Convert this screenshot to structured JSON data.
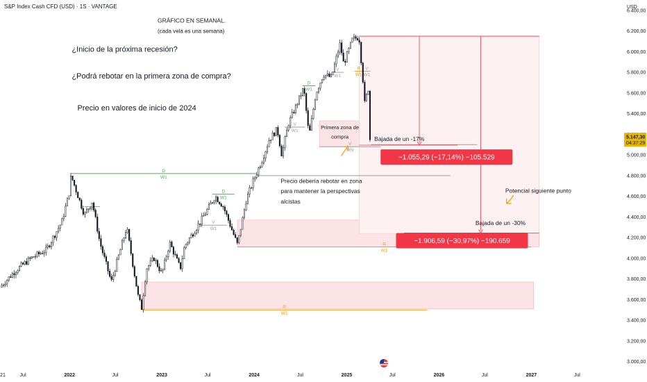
{
  "header": {
    "symbol_title": "S&P Index Cash CFD (USD) · 1S · VANTAGE",
    "currency": "USD"
  },
  "chart_data": {
    "type": "candlestick",
    "title": "S&P Index Cash CFD (USD) · 1S · VANTAGE",
    "y_axis": {
      "ticks": [
        "6.400,00",
        "6.200,00",
        "6.000,00",
        "5.800,00",
        "5.600,00",
        "5.400,00",
        "5.200,00",
        "5.000,00",
        "4.800,00",
        "4.600,00",
        "4.400,00",
        "4.200,00",
        "4.000,00",
        "3.800,00",
        "3.600,00",
        "3.400,00",
        "3.200,00",
        "3.000,00"
      ],
      "ylim": [
        2950,
        6500
      ]
    },
    "x_axis": {
      "ticks": [
        "21",
        "Jul",
        "2022",
        "Jul",
        "2023",
        "Jul",
        "2024",
        "Jul",
        "2025",
        "Jul",
        "2026",
        "Jul",
        "2027",
        "Jul"
      ],
      "xlim": [
        "2021-04-01",
        "2027-12-31"
      ]
    },
    "last_price": {
      "value": "5.147,30",
      "countdown": "04:37:29"
    },
    "price_path": [
      [
        "2021-04-01",
        3720
      ],
      [
        "2021-06-01",
        3880
      ],
      [
        "2021-08-01",
        4000
      ],
      [
        "2021-10-01",
        4080
      ],
      [
        "2021-12-01",
        4350
      ],
      [
        "2021-12-31",
        4640
      ],
      [
        "2022-01-07",
        4800
      ],
      [
        "2022-03-01",
        4420
      ],
      [
        "2022-04-01",
        4550
      ],
      [
        "2022-05-01",
        4150
      ],
      [
        "2022-06-15",
        3770
      ],
      [
        "2022-08-15",
        4300
      ],
      [
        "2022-09-30",
        3620
      ],
      [
        "2022-10-13",
        3520
      ],
      [
        "2022-11-01",
        3900
      ],
      [
        "2022-12-01",
        4000
      ],
      [
        "2023-01-01",
        3850
      ],
      [
        "2023-02-01",
        4150
      ],
      [
        "2023-03-15",
        3900
      ],
      [
        "2023-04-01",
        4120
      ],
      [
        "2023-06-01",
        4350
      ],
      [
        "2023-07-31",
        4600
      ],
      [
        "2023-09-01",
        4500
      ],
      [
        "2023-10-27",
        4130
      ],
      [
        "2023-12-01",
        4570
      ],
      [
        "2024-01-01",
        4770
      ],
      [
        "2024-02-01",
        4950
      ],
      [
        "2024-03-01",
        5150
      ],
      [
        "2024-04-01",
        5250
      ],
      [
        "2024-04-19",
        5000
      ],
      [
        "2024-05-15",
        5300
      ],
      [
        "2024-07-15",
        5650
      ],
      [
        "2024-08-05",
        5180
      ],
      [
        "2024-09-01",
        5600
      ],
      [
        "2024-10-01",
        5780
      ],
      [
        "2024-11-01",
        5750
      ],
      [
        "2024-12-06",
        6080
      ],
      [
        "2024-12-20",
        5880
      ],
      [
        "2025-01-24",
        6120
      ],
      [
        "2025-02-19",
        6140
      ],
      [
        "2025-03-07",
        5700
      ],
      [
        "2025-03-13",
        5500
      ],
      [
        "2025-03-28",
        5650
      ],
      [
        "2025-04-04",
        5070
      ],
      [
        "2025-04-07",
        5147
      ]
    ],
    "levels": [
      {
        "type": "line",
        "color": "#4caf50",
        "price": 4820,
        "start": "2022-01-07",
        "end": "2024-01-10",
        "label_top": "D",
        "label_bottom": "W1"
      },
      {
        "type": "line",
        "color": "#4caf50",
        "price": 4620,
        "start": "2023-07-20",
        "end": "2023-10-15",
        "label_top": "D",
        "label_bottom": "W1"
      },
      {
        "type": "line",
        "color": "#4caf50",
        "price": 5670,
        "start": "2024-07-10",
        "end": "2024-08-30",
        "label_top": "D",
        "label_bottom": "W1"
      },
      {
        "type": "line",
        "color": "#ff9800",
        "price": 4110,
        "start": "2023-10-27",
        "end": "2026-12-31",
        "label_top": "R",
        "label_bottom": "W1"
      },
      {
        "type": "line",
        "color": "#ff9800",
        "price": 3500,
        "start": "2022-10-13",
        "end": "2025-11-15",
        "label_top": "R",
        "label_bottom": "W1"
      },
      {
        "type": "line",
        "color": "#ff9800",
        "price": 5810,
        "start": "2025-02-01",
        "end": "2025-03-05",
        "label_top": "R",
        "label_bottom": "W1"
      },
      {
        "type": "line",
        "color": "#9e9e9e",
        "price": 4500,
        "start": "2022-03-01",
        "end": "2022-05-01",
        "label_top": "V",
        "label_bottom": "W1"
      },
      {
        "type": "line",
        "color": "#9e9e9e",
        "price": 4320,
        "start": "2023-06-01",
        "end": "2023-09-15",
        "label_top": "V",
        "label_bottom": "W1"
      },
      {
        "type": "line",
        "color": "#9e9e9e",
        "price": 5800,
        "start": "2024-11-01",
        "end": "2024-12-20",
        "label_top": "V",
        "label_bottom": "W1"
      },
      {
        "type": "line",
        "color": "#9e9e9e",
        "price": 5810,
        "start": "2025-03-07",
        "end": "2025-04-05",
        "label_top": "V",
        "label_bottom": "W1"
      },
      {
        "type": "line",
        "color": "#9e9e9e",
        "price": 5270,
        "start": "2024-05-01",
        "end": "2024-07-20",
        "label_top": "V",
        "label_bottom": "W1"
      },
      {
        "type": "line",
        "color": "#9e9e9e",
        "price": 5080,
        "start": "2024-09-15",
        "end": "2025-05-15",
        "label_top": "V",
        "label_bottom": "MN"
      },
      {
        "type": "line",
        "color": "#9e9e9e",
        "price": 4800,
        "start": "2024-01-10",
        "end": "2026-02-15",
        "label_top": "",
        "label_bottom": ""
      },
      {
        "type": "line",
        "color": "#9e9e9e",
        "price": 5100,
        "start": "2025-04-07",
        "end": "2026-06-01",
        "label_top": "",
        "label_bottom": ""
      }
    ],
    "zones": [
      {
        "id": "zone-mid",
        "color": "#fbe3e6",
        "border": "#f4b4bb",
        "price_top": 4370,
        "price_bottom": 4110,
        "start": "2023-10-27",
        "end": "2027-02-01"
      },
      {
        "id": "zone-low",
        "color": "#fbe3e6",
        "border": "#f4b4bb",
        "price_top": 3770,
        "price_bottom": 3510,
        "start": "2022-10-13",
        "end": "2027-01-10"
      },
      {
        "id": "zone-first-buy",
        "color": "#fbe3e6",
        "border": "#f4b4bb",
        "price_top": 5330,
        "price_bottom": 5080,
        "start": "2024-09-15",
        "end": "2025-03-01"
      },
      {
        "id": "zone-projection",
        "color": "#fdf1f2",
        "border": "#f7c4ca",
        "price_top": 6150,
        "price_bottom": 4240,
        "start": "2025-02-19",
        "end": "2027-02-01"
      }
    ],
    "measures": [
      {
        "id": "measure-17",
        "from_price": 6150,
        "to_price": 5095,
        "x": "2025-10-15",
        "line_end": "2026-03-15"
      },
      {
        "id": "measure-30",
        "from_price": 6150,
        "to_price": 4245,
        "x": "2026-06-15",
        "line_end": "2027-02-01"
      }
    ],
    "annotations": [
      {
        "text": "GRÁFICO EN SEMANAL.",
        "size": 8.5,
        "x": "2022-12-15",
        "price": 6280
      },
      {
        "text": "(cada vela es una semana)",
        "size": 8,
        "x": "2022-12-15",
        "price": 6180
      },
      {
        "text": "¿Inicio de la próxima recesión?",
        "size": 11,
        "x": "2022-01-10",
        "price": 6000
      },
      {
        "text": "¿Podrá rebotar en la primera zona de compra?",
        "size": 11,
        "x": "2022-01-10",
        "price": 5740
      },
      {
        "text": "Precio en valores de inicio de 2024",
        "size": 11,
        "x": "2022-02-01",
        "price": 5430
      },
      {
        "text": "Primera zona de",
        "size": 7.5,
        "x": "2024-12-05",
        "price": 5250,
        "anchor": "middle"
      },
      {
        "text": "compra",
        "size": 7.5,
        "x": "2024-12-05",
        "price": 5160,
        "anchor": "middle"
      },
      {
        "text": "Bajada de un -17%",
        "size": 8.5,
        "x": "2025-04-20",
        "price": 5135
      },
      {
        "text": "Precio debería rebotar en zona",
        "size": 8.5,
        "x": "2024-04-15",
        "price": 4730
      },
      {
        "text": "para mantener la perspectivas",
        "size": 8.5,
        "x": "2024-04-15",
        "price": 4630
      },
      {
        "text": "alcistas",
        "size": 8.5,
        "x": "2024-04-15",
        "price": 4530
      },
      {
        "text": "Potencial siguiente punto",
        "size": 8.5,
        "x": "2026-09-20",
        "price": 4635
      },
      {
        "text": "Bajada de un -30%",
        "size": 8.5,
        "x": "2026-05-25",
        "price": 4320
      }
    ],
    "callouts": [
      {
        "text": "−1.055,29 (−17,14%) −105.529",
        "x": "2025-05-15",
        "price": 4980,
        "color": "#f23645"
      },
      {
        "text": "−1.906,59 (−30,97%) −190.659",
        "x": "2025-07-15",
        "price": 4170,
        "color": "#f23645"
      }
    ],
    "colors": {
      "up": "#ffffff",
      "down": "#131722",
      "wick": "#131722",
      "accent": "#f23645",
      "price_tag": "#e6b800"
    }
  }
}
